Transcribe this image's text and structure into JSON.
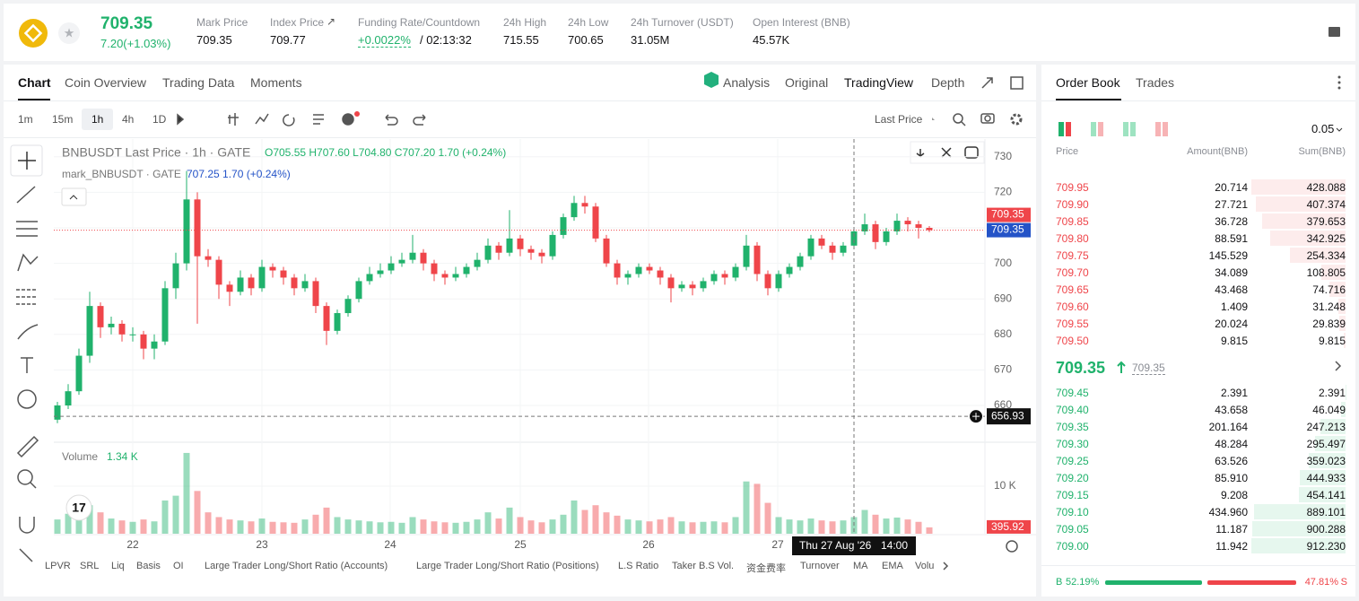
{
  "header": {
    "price": "709.35",
    "change": "7.20(+1.03%)",
    "stats": [
      {
        "label": "Mark Price",
        "value": "709.35"
      },
      {
        "label": "Index Price",
        "value": "709.77"
      },
      {
        "label": "Funding Rate/Countdown",
        "value": "+0.0022%",
        "countdown": "/ 02:13:32"
      },
      {
        "label": "24h High",
        "value": "715.55"
      },
      {
        "label": "24h Low",
        "value": "700.65"
      },
      {
        "label": "24h Turnover (USDT)",
        "value": "31.05M"
      },
      {
        "label": "Open Interest (BNB)",
        "value": "45.57K"
      }
    ]
  },
  "tabs": [
    "Chart",
    "Coin Overview",
    "Trading Data",
    "Moments"
  ],
  "views": [
    "Analysis",
    "Original",
    "TradingView",
    "Depth"
  ],
  "intervals": [
    "1m",
    "15m",
    "1h",
    "4h",
    "1D"
  ],
  "price_source": "Last Price",
  "indicators": [
    "LPVR",
    "SRL",
    "Liq",
    "Basis",
    "OI",
    "Large Trader Long/Short Ratio (Accounts)",
    "Large Trader Long/Short Ratio (Positions)",
    "L.S Ratio",
    "Taker B.S Vol.",
    "资金费率",
    "Turnover",
    "MA",
    "EMA",
    "Volu"
  ],
  "chart_data": {
    "type": "candlestick",
    "symbol_legend": "BNBUSDT Last Price · 1h · GATE",
    "ohlc_legend": "O705.55 H707.60 L704.80 C707.20 1.70 (+0.24%)",
    "mark_legend": "mark_BNBUSDT · GATE",
    "mark_values": "707.25  1.70 (+0.24%)",
    "volume_title": "Volume",
    "volume_value_label": "1.34 K",
    "up_color": "#20b26c",
    "down_color": "#ef454a",
    "ylim": [
      650,
      735
    ],
    "yticks": [
      660,
      670,
      680,
      690,
      700,
      710,
      720,
      730
    ],
    "volume_ylim": [
      0,
      18500
    ],
    "volume_yticks": [
      {
        "value": 10000,
        "label": "10 K"
      }
    ],
    "xtick_labels": [
      "22",
      "23",
      "24",
      "25",
      "26",
      "27"
    ],
    "last_price": 709.35,
    "mark_price": 709.35,
    "crosshair_price": 656.93,
    "volume_tag": 395.92,
    "crosshair_date": "Thu 27 Aug '26",
    "crosshair_time": "14:00",
    "candles": [
      [
        656,
        661,
        655,
        660
      ],
      [
        660,
        666,
        659,
        664
      ],
      [
        664,
        676,
        663,
        674
      ],
      [
        674,
        692,
        672,
        688
      ],
      [
        688,
        689,
        679,
        682
      ],
      [
        682,
        685,
        680,
        683
      ],
      [
        683,
        684,
        678,
        680
      ],
      [
        680,
        682,
        678,
        680
      ],
      [
        680,
        681,
        673,
        676
      ],
      [
        676,
        680,
        673,
        678
      ],
      [
        678,
        695,
        677,
        693
      ],
      [
        693,
        703,
        690,
        700
      ],
      [
        700,
        726,
        698,
        718
      ],
      [
        718,
        720,
        683,
        702
      ],
      [
        702,
        704,
        699,
        701
      ],
      [
        701,
        702,
        690,
        694
      ],
      [
        694,
        695,
        688,
        692
      ],
      [
        692,
        698,
        691,
        696
      ],
      [
        696,
        697,
        691,
        693
      ],
      [
        693,
        701,
        692,
        699
      ],
      [
        699,
        700,
        696,
        698
      ],
      [
        698,
        699,
        694,
        696
      ],
      [
        696,
        697,
        691,
        693
      ],
      [
        693,
        697,
        692,
        695
      ],
      [
        695,
        696,
        686,
        688
      ],
      [
        688,
        689,
        677,
        681
      ],
      [
        681,
        687,
        680,
        686
      ],
      [
        686,
        691,
        685,
        690
      ],
      [
        690,
        696,
        689,
        695
      ],
      [
        695,
        699,
        694,
        697
      ],
      [
        697,
        700,
        696,
        698
      ],
      [
        698,
        702,
        697,
        700
      ],
      [
        700,
        703,
        699,
        701
      ],
      [
        701,
        708,
        700,
        703
      ],
      [
        703,
        704,
        698,
        700
      ],
      [
        700,
        701,
        695,
        697
      ],
      [
        697,
        698,
        694,
        696
      ],
      [
        696,
        699,
        695,
        697
      ],
      [
        697,
        700,
        696,
        699
      ],
      [
        699,
        703,
        698,
        701
      ],
      [
        701,
        707,
        700,
        705
      ],
      [
        705,
        706,
        701,
        703
      ],
      [
        703,
        715,
        702,
        707
      ],
      [
        707,
        708,
        702,
        704
      ],
      [
        704,
        705,
        701,
        703
      ],
      [
        703,
        704,
        700,
        702
      ],
      [
        702,
        709,
        701,
        708
      ],
      [
        708,
        714,
        707,
        713
      ],
      [
        713,
        719,
        712,
        717
      ],
      [
        717,
        719,
        714,
        716
      ],
      [
        716,
        717,
        706,
        707
      ],
      [
        707,
        708,
        699,
        700
      ],
      [
        700,
        701,
        694,
        696
      ],
      [
        696,
        698,
        694,
        697
      ],
      [
        697,
        700,
        696,
        699
      ],
      [
        699,
        700,
        697,
        698
      ],
      [
        698,
        699,
        694,
        696
      ],
      [
        696,
        697,
        689,
        693
      ],
      [
        693,
        695,
        692,
        694
      ],
      [
        694,
        695,
        691,
        693
      ],
      [
        693,
        696,
        692,
        695
      ],
      [
        695,
        698,
        694,
        697
      ],
      [
        697,
        698,
        694,
        696
      ],
      [
        696,
        700,
        695,
        699
      ],
      [
        699,
        708,
        698,
        705
      ],
      [
        705,
        706,
        695,
        697
      ],
      [
        697,
        698,
        691,
        693
      ],
      [
        693,
        698,
        692,
        697
      ],
      [
        697,
        700,
        696,
        699
      ],
      [
        699,
        703,
        698,
        702
      ],
      [
        702,
        708,
        701,
        707
      ],
      [
        707,
        708,
        704,
        705
      ],
      [
        705,
        706,
        701,
        703
      ],
      [
        703,
        706,
        702,
        705
      ],
      [
        705,
        710,
        704,
        709
      ],
      [
        709,
        714,
        708,
        711
      ],
      [
        711,
        712,
        704,
        706
      ],
      [
        706,
        710,
        705,
        709
      ],
      [
        709,
        714,
        708,
        712
      ],
      [
        712,
        713,
        709,
        711
      ],
      [
        711,
        712,
        707,
        710
      ],
      [
        710,
        710.5,
        708.8,
        709.35
      ]
    ],
    "volumes": [
      3000,
      4200,
      3500,
      6000,
      4500,
      3200,
      2800,
      2500,
      3000,
      2600,
      7000,
      8000,
      17000,
      9000,
      4500,
      3500,
      3000,
      2800,
      2600,
      3200,
      2500,
      2400,
      2300,
      3000,
      4000,
      5500,
      3500,
      3000,
      2800,
      2600,
      2400,
      2500,
      2300,
      3500,
      3000,
      2600,
      2400,
      2300,
      2500,
      3000,
      4500,
      3200,
      5500,
      3500,
      2800,
      2400,
      3000,
      4000,
      7000,
      5000,
      6000,
      4500,
      3800,
      3000,
      2800,
      2600,
      3000,
      3500,
      2600,
      2400,
      2500,
      2600,
      2400,
      3500,
      11000,
      10500,
      6500,
      3500,
      3000,
      2800,
      3200,
      2800,
      2600,
      2800,
      3500,
      5000,
      4000,
      3200,
      3400,
      3000,
      2500,
      1340
    ]
  },
  "order_book": {
    "tabs": [
      "Order Book",
      "Trades"
    ],
    "step": "0.05",
    "columns": [
      "Price",
      "Amount(BNB)",
      "Sum(BNB)"
    ],
    "asks": [
      [
        "709.95",
        "20.714",
        "428.088"
      ],
      [
        "709.90",
        "27.721",
        "407.374"
      ],
      [
        "709.85",
        "36.728",
        "379.653"
      ],
      [
        "709.80",
        "88.591",
        "342.925"
      ],
      [
        "709.75",
        "145.529",
        "254.334"
      ],
      [
        "709.70",
        "34.089",
        "108.805"
      ],
      [
        "709.65",
        "43.468",
        "74.716"
      ],
      [
        "709.60",
        "1.409",
        "31.248"
      ],
      [
        "709.55",
        "20.024",
        "29.839"
      ],
      [
        "709.50",
        "9.815",
        "9.815"
      ]
    ],
    "last": "709.35",
    "mark": "709.35",
    "bids": [
      [
        "709.45",
        "2.391",
        "2.391"
      ],
      [
        "709.40",
        "43.658",
        "46.049"
      ],
      [
        "709.35",
        "201.164",
        "247.213"
      ],
      [
        "709.30",
        "48.284",
        "295.497"
      ],
      [
        "709.25",
        "63.526",
        "359.023"
      ],
      [
        "709.20",
        "85.910",
        "444.933"
      ],
      [
        "709.15",
        "9.208",
        "454.141"
      ],
      [
        "709.10",
        "434.960",
        "889.101"
      ],
      [
        "709.05",
        "11.187",
        "900.288"
      ],
      [
        "709.00",
        "11.942",
        "912.230"
      ]
    ],
    "buy_label": "B",
    "buy_ratio": 52.19,
    "buy_text": "52.19%",
    "sell_ratio": 47.81,
    "sell_text": "47.81%",
    "sell_label": "S"
  }
}
